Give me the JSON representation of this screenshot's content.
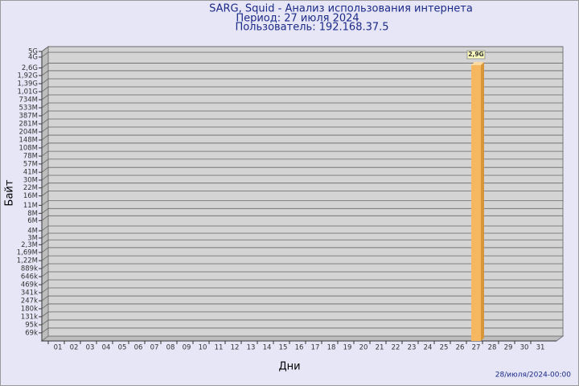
{
  "chart_data": {
    "type": "bar",
    "title": "SARG, Squid - Анализ использования интернета",
    "subtitle": [
      "Период: 27 июля 2024",
      "Пользователь: 192.168.37.5"
    ],
    "x_label": "Дни",
    "y_label": "Байт",
    "footer": "28/июля/2024-00:00",
    "categories": [
      "01",
      "02",
      "03",
      "04",
      "05",
      "06",
      "07",
      "08",
      "09",
      "10",
      "11",
      "12",
      "13",
      "14",
      "15",
      "16",
      "17",
      "18",
      "19",
      "20",
      "21",
      "22",
      "23",
      "24",
      "25",
      "26",
      "27",
      "28",
      "29",
      "30",
      "31"
    ],
    "values": [
      null,
      null,
      null,
      null,
      null,
      null,
      null,
      null,
      null,
      null,
      null,
      null,
      null,
      null,
      null,
      null,
      null,
      null,
      null,
      null,
      null,
      null,
      null,
      null,
      null,
      null,
      2900000000,
      null,
      null,
      null,
      null
    ],
    "value_labels": [
      null,
      null,
      null,
      null,
      null,
      null,
      null,
      null,
      null,
      null,
      null,
      null,
      null,
      null,
      null,
      null,
      null,
      null,
      null,
      null,
      null,
      null,
      null,
      null,
      null,
      null,
      "2,9G",
      null,
      null,
      null,
      null
    ],
    "color": "#f5b860",
    "log": true,
    "grid": true,
    "ylim": [
      50000,
      5000000000
    ],
    "yticks": [
      {
        "value": 69000,
        "label": "69k"
      },
      {
        "value": 95000,
        "label": "95k"
      },
      {
        "value": 131000,
        "label": "131k"
      },
      {
        "value": 180000,
        "label": "180k"
      },
      {
        "value": 247000,
        "label": "247k"
      },
      {
        "value": 341000,
        "label": "341k"
      },
      {
        "value": 469000,
        "label": "469k"
      },
      {
        "value": 646000,
        "label": "646k"
      },
      {
        "value": 889000,
        "label": "889k"
      },
      {
        "value": 1220000,
        "label": "1,22M"
      },
      {
        "value": 1690000,
        "label": "1,69M"
      },
      {
        "value": 2300000,
        "label": "2,3M"
      },
      {
        "value": 3000000,
        "label": "3M"
      },
      {
        "value": 4000000,
        "label": "4M"
      },
      {
        "value": 6000000,
        "label": "6M"
      },
      {
        "value": 8000000,
        "label": "8M"
      },
      {
        "value": 11000000,
        "label": "11M"
      },
      {
        "value": 16000000,
        "label": "16M"
      },
      {
        "value": 22000000,
        "label": "22M"
      },
      {
        "value": 30000000,
        "label": "30M"
      },
      {
        "value": 41000000,
        "label": "41M"
      },
      {
        "value": 57000000,
        "label": "57M"
      },
      {
        "value": 78000000,
        "label": "78M"
      },
      {
        "value": 108000000,
        "label": "108M"
      },
      {
        "value": 148000000,
        "label": "148M"
      },
      {
        "value": 204000000,
        "label": "204M"
      },
      {
        "value": 281000000,
        "label": "281M"
      },
      {
        "value": 387000000,
        "label": "387M"
      },
      {
        "value": 533000000,
        "label": "533M"
      },
      {
        "value": 734000000,
        "label": "734M"
      },
      {
        "value": 1010000000,
        "label": "1,01G"
      },
      {
        "value": 1390000000,
        "label": "1,39G"
      },
      {
        "value": 1920000000,
        "label": "1,92G"
      },
      {
        "value": 2600000000,
        "label": "2,6G"
      },
      {
        "value": 4000000000,
        "label": "4G"
      },
      {
        "value": 5000000000,
        "label": "5G"
      }
    ]
  }
}
